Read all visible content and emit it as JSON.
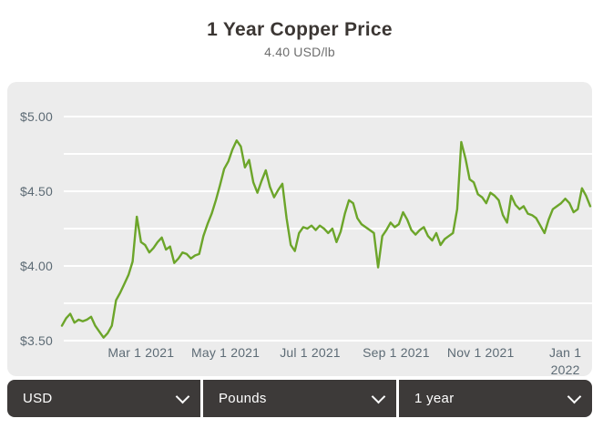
{
  "header": {
    "title": "1 Year Copper Price",
    "current_price": "4.40 USD/lb"
  },
  "controls": {
    "currency": {
      "value": "USD"
    },
    "weight_unit": {
      "value": "Pounds"
    },
    "time_range": {
      "value": "1 year"
    }
  },
  "icons": {
    "dropdown": "chevron-down"
  },
  "colors": {
    "line": "#6CA52A",
    "card_bg": "#ECECEC",
    "grid": "#FFFFFF",
    "axis_label": "#5D6B75",
    "controls_bg": "#3D3A39",
    "title": "#3B3633",
    "subtitle": "#6E6E6E"
  },
  "chart_data": {
    "type": "line",
    "title": "1 Year Copper Price",
    "subtitle": "4.40 USD/lb",
    "unit": "USD/lb",
    "grid": true,
    "legend": "none",
    "x_start_date": "2021-01-03",
    "x_end_date": "2022-01-19",
    "x_interval_days": 3,
    "total_days": 381,
    "ylim": [
      3.5,
      5.0
    ],
    "y_grid_step": 0.25,
    "y_ticks": [
      {
        "value": 5.0,
        "label": "$5.00"
      },
      {
        "value": 4.5,
        "label": "$4.50"
      },
      {
        "value": 4.0,
        "label": "$4.00"
      },
      {
        "value": 3.5,
        "label": "$3.50"
      }
    ],
    "x_ticks": [
      {
        "label": "Mar 1 2021",
        "day_offset": 57
      },
      {
        "label": "May 1 2021",
        "day_offset": 118
      },
      {
        "label": "Jul 1 2021",
        "day_offset": 179
      },
      {
        "label": "Sep 1 2021",
        "day_offset": 241
      },
      {
        "label": "Nov 1 2021",
        "day_offset": 302
      },
      {
        "label": "Jan 1 2022",
        "label_lines": [
          "Jan 1",
          "2022"
        ],
        "day_offset": 363
      }
    ],
    "prices": [
      3.6,
      3.65,
      3.68,
      3.62,
      3.64,
      3.63,
      3.64,
      3.66,
      3.6,
      3.56,
      3.52,
      3.55,
      3.6,
      3.77,
      3.82,
      3.88,
      3.94,
      4.03,
      4.33,
      4.16,
      4.14,
      4.09,
      4.12,
      4.16,
      4.19,
      4.11,
      4.13,
      4.02,
      4.05,
      4.09,
      4.08,
      4.05,
      4.07,
      4.08,
      4.2,
      4.28,
      4.35,
      4.44,
      4.54,
      4.65,
      4.7,
      4.78,
      4.84,
      4.8,
      4.66,
      4.71,
      4.56,
      4.49,
      4.57,
      4.64,
      4.53,
      4.46,
      4.51,
      4.55,
      4.32,
      4.14,
      4.1,
      4.22,
      4.26,
      4.25,
      4.27,
      4.24,
      4.27,
      4.25,
      4.22,
      4.25,
      4.16,
      4.23,
      4.35,
      4.44,
      4.42,
      4.32,
      4.28,
      4.26,
      4.24,
      4.22,
      3.99,
      4.2,
      4.24,
      4.29,
      4.26,
      4.28,
      4.36,
      4.31,
      4.24,
      4.21,
      4.24,
      4.26,
      4.2,
      4.17,
      4.22,
      4.14,
      4.18,
      4.2,
      4.22,
      4.38,
      4.83,
      4.72,
      4.58,
      4.56,
      4.48,
      4.46,
      4.42,
      4.49,
      4.47,
      4.44,
      4.34,
      4.29,
      4.47,
      4.41,
      4.38,
      4.4,
      4.35,
      4.34,
      4.32,
      4.27,
      4.22,
      4.31,
      4.38,
      4.4,
      4.42,
      4.45,
      4.42,
      4.36,
      4.38,
      4.52,
      4.47,
      4.4
    ]
  }
}
